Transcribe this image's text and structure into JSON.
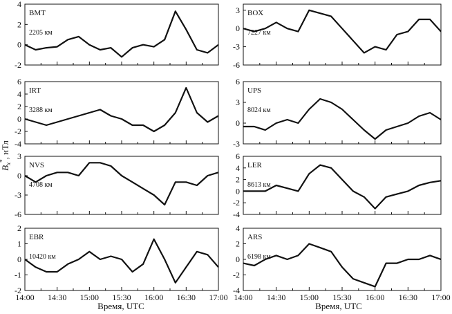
{
  "figure": {
    "ylabel_main": "B",
    "ylabel_sub": "x",
    "ylabel_sup": "*",
    "ylabel_unit": ", нТл",
    "xlabel": "Время, UTC",
    "xticks": [
      "14:00",
      "14:30",
      "15:00",
      "15:30",
      "16:00",
      "16:30",
      "17:00"
    ]
  },
  "chart_data": [
    {
      "type": "line",
      "station": "BMT",
      "distance": "2205 км",
      "ylim": [
        -2,
        4
      ],
      "yticks": [
        -2,
        0,
        2,
        4
      ],
      "x_minutes": [
        0,
        10,
        20,
        30,
        40,
        50,
        60,
        70,
        80,
        90,
        100,
        110,
        120,
        130,
        140,
        150,
        160,
        170,
        180
      ],
      "values": [
        0,
        -0.5,
        -0.3,
        -0.2,
        0.5,
        0.8,
        0,
        -0.5,
        -0.3,
        -1.2,
        -0.3,
        0,
        -0.2,
        0.5,
        3.3,
        1.5,
        -0.5,
        -0.8,
        0
      ]
    },
    {
      "type": "line",
      "station": "BOX",
      "distance": "7227 км",
      "ylim": [
        -6,
        4
      ],
      "yticks": [
        -6,
        -3,
        0,
        3
      ],
      "x_minutes": [
        0,
        10,
        20,
        30,
        40,
        50,
        60,
        70,
        80,
        90,
        100,
        110,
        120,
        130,
        140,
        150,
        160,
        170,
        180
      ],
      "values": [
        0,
        -0.5,
        0,
        1,
        0,
        -0.5,
        3,
        2.5,
        2,
        0,
        -2,
        -4,
        -3,
        -3.5,
        -1,
        -0.5,
        1.5,
        1.5,
        -0.5
      ]
    },
    {
      "type": "line",
      "station": "IRT",
      "distance": "3288 км",
      "ylim": [
        -4,
        6
      ],
      "yticks": [
        -4,
        -2,
        0,
        2,
        4,
        6
      ],
      "x_minutes": [
        0,
        10,
        20,
        30,
        40,
        50,
        60,
        70,
        80,
        90,
        100,
        110,
        120,
        130,
        140,
        150,
        160,
        170,
        180
      ],
      "values": [
        0,
        -0.5,
        -1,
        -0.5,
        0,
        0.5,
        1,
        1.5,
        0.5,
        0,
        -1,
        -1,
        -2,
        -1,
        1,
        5,
        1,
        -0.5,
        0.5
      ]
    },
    {
      "type": "line",
      "station": "UPS",
      "distance": "8024 км",
      "ylim": [
        -3,
        6
      ],
      "yticks": [
        -3,
        0,
        3,
        6
      ],
      "x_minutes": [
        0,
        10,
        20,
        30,
        40,
        50,
        60,
        70,
        80,
        90,
        100,
        110,
        120,
        130,
        140,
        150,
        160,
        170,
        180
      ],
      "values": [
        -0.5,
        -0.5,
        -1,
        0,
        0.5,
        0,
        2,
        3.5,
        3,
        2,
        0.5,
        -1,
        -2.3,
        -1,
        -0.5,
        0,
        1,
        1.5,
        0.5
      ]
    },
    {
      "type": "line",
      "station": "NVS",
      "distance": "4708 км",
      "ylim": [
        -6,
        3
      ],
      "yticks": [
        -6,
        -3,
        0,
        3
      ],
      "x_minutes": [
        0,
        10,
        20,
        30,
        40,
        50,
        60,
        70,
        80,
        90,
        100,
        110,
        120,
        130,
        140,
        150,
        160,
        170,
        180
      ],
      "values": [
        0,
        -1,
        0,
        0.5,
        0.5,
        0,
        2,
        2,
        1.5,
        0,
        -1,
        -2,
        -3,
        -4.5,
        -1,
        -1,
        -1.5,
        0,
        0.5
      ]
    },
    {
      "type": "line",
      "station": "LER",
      "distance": "8613 км",
      "ylim": [
        -4,
        6
      ],
      "yticks": [
        -4,
        -2,
        0,
        2,
        4,
        6
      ],
      "x_minutes": [
        0,
        10,
        20,
        30,
        40,
        50,
        60,
        70,
        80,
        90,
        100,
        110,
        120,
        130,
        140,
        150,
        160,
        170,
        180
      ],
      "values": [
        0,
        0,
        0,
        1,
        0.5,
        0,
        3,
        4.5,
        4,
        2,
        0,
        -1,
        -3,
        -1,
        -0.5,
        0,
        1,
        1.5,
        1.8
      ]
    },
    {
      "type": "line",
      "station": "EBR",
      "distance": "10420 км",
      "ylim": [
        -2,
        2
      ],
      "yticks": [
        -2,
        -1,
        0,
        1,
        2
      ],
      "x_minutes": [
        0,
        10,
        20,
        30,
        40,
        50,
        60,
        70,
        80,
        90,
        100,
        110,
        120,
        130,
        140,
        150,
        160,
        170,
        180
      ],
      "values": [
        0,
        -0.5,
        -0.8,
        -0.8,
        -0.3,
        0,
        0.5,
        0,
        0.2,
        0,
        -0.8,
        -0.3,
        1.3,
        0,
        -1.5,
        -0.5,
        0.5,
        0.3,
        -0.5
      ]
    },
    {
      "type": "line",
      "station": "ARS",
      "distance": "6198 км",
      "ylim": [
        -4,
        4
      ],
      "yticks": [
        -4,
        -2,
        0,
        2,
        4
      ],
      "x_minutes": [
        0,
        10,
        20,
        30,
        40,
        50,
        60,
        70,
        80,
        90,
        100,
        110,
        120,
        130,
        140,
        150,
        160,
        170,
        180
      ],
      "values": [
        -0.5,
        -0.8,
        0,
        0.5,
        0,
        0.5,
        2,
        1.5,
        1,
        -1,
        -2.5,
        -3,
        -3.5,
        -0.5,
        -0.5,
        0,
        0,
        0.5,
        0
      ]
    }
  ]
}
